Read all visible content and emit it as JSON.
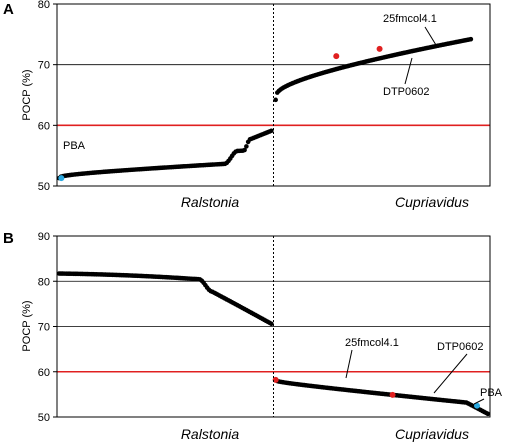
{
  "chart_data": [
    {
      "panel": "A",
      "type": "scatter",
      "ylabel": "POCP (%)",
      "ylim": [
        50,
        80
      ],
      "yticks": [
        50,
        60,
        70,
        80
      ],
      "grid_lines_y": [
        70
      ],
      "threshold": {
        "value": 60,
        "color": "#e02020"
      },
      "groups": [
        {
          "label": "Ralstonia",
          "x_range": [
            0,
            1
          ],
          "y_start": 51.3,
          "y_end": 59.3
        },
        {
          "label": "Cupriavidus",
          "x_range": [
            1,
            2
          ],
          "y_start": 64.2,
          "y_end": 74.2
        }
      ],
      "x_divider": 1,
      "highlights": [
        {
          "label": "PBA",
          "x": 0.02,
          "y": 51.3,
          "color": "#29a8e0"
        },
        {
          "label": "DTP0602",
          "x": 1.29,
          "y": 71.4,
          "color": "#e02020"
        },
        {
          "label": "25fmcol4.1",
          "x": 1.49,
          "y": 72.6,
          "color": "#e02020"
        }
      ]
    },
    {
      "panel": "B",
      "type": "scatter",
      "ylabel": "POCP (%)",
      "ylim": [
        50,
        90
      ],
      "yticks": [
        50,
        60,
        70,
        80,
        90
      ],
      "grid_lines_y": [
        70,
        80
      ],
      "threshold": {
        "value": 60,
        "color": "#e02020"
      },
      "groups": [
        {
          "label": "Ralstonia",
          "x_range": [
            0,
            1
          ],
          "y_start": 81.7,
          "y_end": 68.7
        },
        {
          "label": "Cupriavidus",
          "x_range": [
            1,
            2
          ],
          "y_start": 58.2,
          "y_end": 50.6
        }
      ],
      "x_divider": 1,
      "highlights": [
        {
          "label": "25fmcol4.1",
          "x": 1.01,
          "y": 58.2,
          "color": "#e02020"
        },
        {
          "label": "DTP0602",
          "x": 1.55,
          "y": 54.9,
          "color": "#e02020"
        },
        {
          "label": "PBA",
          "x": 1.94,
          "y": 52.5,
          "color": "#29a8e0"
        }
      ]
    }
  ]
}
